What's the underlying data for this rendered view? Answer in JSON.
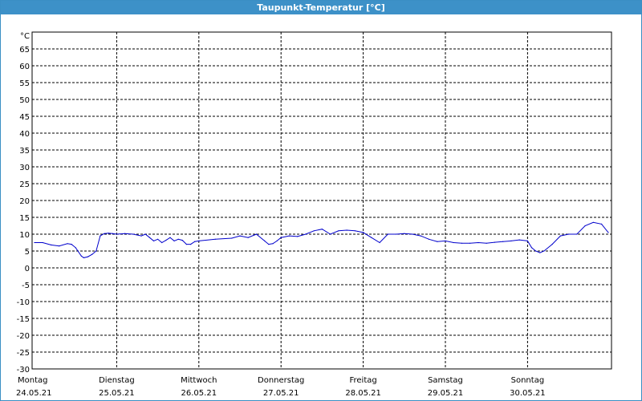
{
  "window": {
    "title": "Taupunkt-Temperatur [°C]"
  },
  "colors": {
    "titlebar": "#3d91c8",
    "line": "#0000cc",
    "grid": "#000000"
  },
  "chart_data": {
    "type": "line",
    "title": "Taupunkt-Temperatur [°C]",
    "ylabel": "°C",
    "xlabel": "",
    "ylim": [
      -30,
      70
    ],
    "yticks": [
      65,
      60,
      55,
      50,
      45,
      40,
      35,
      30,
      25,
      20,
      15,
      10,
      5,
      0,
      -5,
      -10,
      -15,
      -20,
      -25,
      -30
    ],
    "grid": true,
    "xlim": [
      0,
      7
    ],
    "x_labels": [
      {
        "day": "Montag",
        "date": "24.05.21",
        "x": 0
      },
      {
        "day": "Dienstag",
        "date": "25.05.21",
        "x": 1
      },
      {
        "day": "Mittwoch",
        "date": "26.05.21",
        "x": 2
      },
      {
        "day": "Donnerstag",
        "date": "27.05.21",
        "x": 3
      },
      {
        "day": "Freitag",
        "date": "28.05.21",
        "x": 4
      },
      {
        "day": "Samstag",
        "date": "29.05.21",
        "x": 5
      },
      {
        "day": "Sonntag",
        "date": "30.05.21",
        "x": 6
      }
    ],
    "series": [
      {
        "x": [
          0.0,
          0.1,
          0.2,
          0.3,
          0.4,
          0.45,
          0.5,
          0.57,
          0.6,
          0.65,
          0.7,
          0.75,
          0.8,
          0.85,
          0.9,
          0.95,
          1.0,
          1.1,
          1.2,
          1.3,
          1.35,
          1.4,
          1.45,
          1.5,
          1.55,
          1.6,
          1.65,
          1.7,
          1.75,
          1.8,
          1.85,
          1.9,
          1.95,
          2.0,
          2.2,
          2.4,
          2.5,
          2.6,
          2.7,
          2.8,
          2.85,
          2.9,
          2.95,
          3.0,
          3.1,
          3.2,
          3.3,
          3.4,
          3.5,
          3.6,
          3.7,
          3.8,
          3.9,
          4.0,
          4.1,
          4.2,
          4.3,
          4.4,
          4.5,
          4.6,
          4.7,
          4.8,
          4.9,
          5.0,
          5.1,
          5.2,
          5.3,
          5.4,
          5.5,
          5.6,
          5.7,
          5.8,
          5.9,
          6.0,
          6.05,
          6.1,
          6.15,
          6.2,
          6.3,
          6.4,
          6.5,
          6.6,
          6.7,
          6.8,
          6.9,
          7.0
        ],
        "values": [
          7.5,
          7.5,
          6.8,
          6.5,
          7.2,
          7.0,
          6.0,
          3.5,
          3.0,
          3.3,
          4.0,
          5.0,
          9.5,
          10.2,
          10.3,
          10.2,
          10.0,
          10.2,
          10.0,
          9.5,
          10.0,
          9.0,
          8.0,
          8.5,
          7.5,
          8.2,
          9.0,
          8.0,
          8.5,
          8.2,
          7.0,
          7.0,
          7.8,
          8.0,
          8.5,
          8.8,
          9.5,
          9.0,
          10.0,
          8.0,
          7.0,
          7.2,
          8.0,
          9.0,
          9.5,
          9.3,
          10.0,
          11.0,
          11.5,
          10.0,
          11.0,
          11.2,
          11.0,
          10.5,
          9.0,
          7.5,
          10.0,
          10.0,
          10.2,
          10.0,
          9.5,
          8.5,
          7.8,
          8.0,
          7.5,
          7.3,
          7.3,
          7.5,
          7.3,
          7.6,
          7.8,
          8.0,
          8.3,
          8.0,
          6.0,
          5.0,
          4.5,
          5.0,
          7.0,
          9.5,
          10.0,
          10.0,
          12.5,
          13.5,
          13.0,
          10.5
        ]
      }
    ]
  }
}
